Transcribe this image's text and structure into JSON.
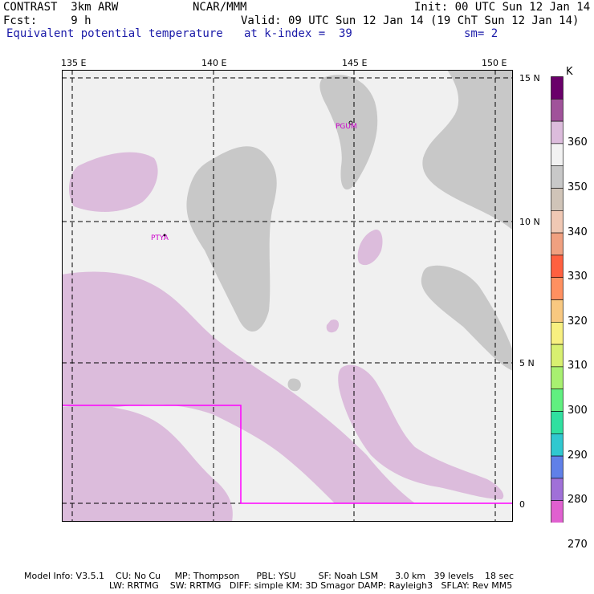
{
  "header": {
    "model": "CONTRAST  3km ARW",
    "org": "NCAR/MMM",
    "init": "Init: 00 UTC Sun 12 Jan 14",
    "fcst": "Fcst:     9 h",
    "valid": "Valid: 09 UTC Sun 12 Jan 14 (19 ChT Sun 12 Jan 14)",
    "field": "Equivalent potential temperature",
    "level": "at k-index =  39",
    "smooth": "sm= 2"
  },
  "map": {
    "lon_labels": [
      "135 E",
      "140 E",
      "145 E",
      "150 E"
    ],
    "lat_labels": [
      "15 N",
      "10 N",
      "5 N",
      "0"
    ],
    "stations": [
      "PTYA",
      "PGUM"
    ],
    "colors": {
      "land": "#c8c8c8",
      "ocean": "#f0f0f0",
      "moist": "#dcbcdc",
      "domain_box": "#ff00ff",
      "station": "#cc00cc"
    }
  },
  "legend": {
    "unit": "K",
    "labels": [
      "360",
      "350",
      "340",
      "330",
      "320",
      "310",
      "300",
      "290",
      "280",
      "270"
    ],
    "colors": [
      "#6a006a",
      "#a0529a",
      "#dcbcdc",
      "#f2f2f2",
      "#c8c8c8",
      "#d0c4b8",
      "#f0c8b4",
      "#f0a080",
      "#ff6040",
      "#ff9060",
      "#f8c880",
      "#f8f080",
      "#d8f070",
      "#a8f070",
      "#60f080",
      "#30e0a0",
      "#30c8d0",
      "#6080e8",
      "#a070d8",
      "#e060d0"
    ]
  },
  "footer": {
    "line1": "Model Info: V3.5.1    CU: No Cu     MP: Thompson      PBL: YSU        SF: Noah LSM      3.0 km   39 levels    18 sec",
    "line2": "LW: RRTMG    SW: RRTMG   DIFF: simple KM: 3D Smagor DAMP: Rayleigh3   SFLAY: Rev MM5"
  }
}
